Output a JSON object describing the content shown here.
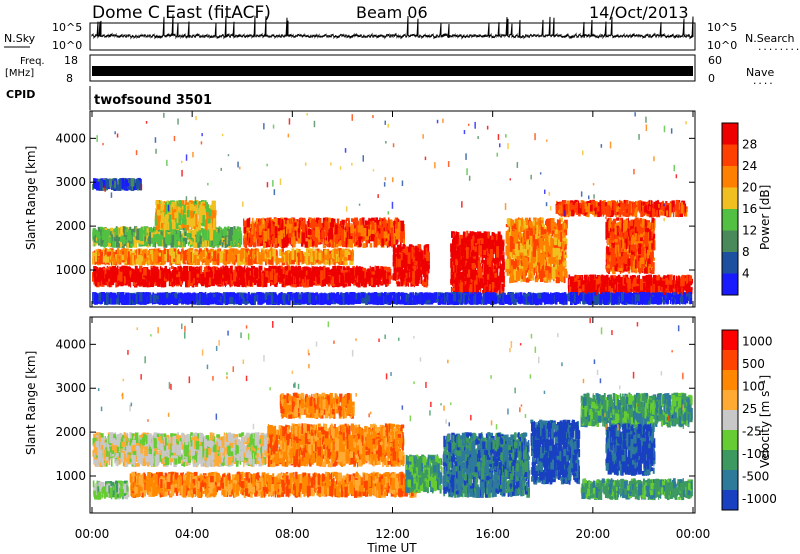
{
  "header": {
    "station": "Dome C East (fitACF)",
    "beam": "Beam 06",
    "date": "14/Oct/2013"
  },
  "strips": {
    "nsky_label": "N.Sky",
    "nsky_ticks": [
      "10^5",
      "10^0"
    ],
    "nsearch_label": "N.Search",
    "nsearch_dots": "........",
    "freq_label": "Freq.",
    "freq_unit": "[MHz]",
    "freq_ticks": [
      "18",
      "8"
    ],
    "nave_label": "Nave",
    "nave_dots": "....",
    "nave_ticks": [
      "60",
      "0"
    ],
    "cpid_label": "CPID",
    "cpid_value": "twofsound 3501"
  },
  "colors": {
    "power": [
      "#1a1aff",
      "#1e50a0",
      "#4a8a5a",
      "#52c042",
      "#f0c020",
      "#ff8000",
      "#ff4000",
      "#ee0000"
    ],
    "velocity": [
      "#ff0000",
      "#ff4400",
      "#ff8800",
      "#ffaa33",
      "#c8c8c8",
      "#66cc33",
      "#3c9a60",
      "#2e7a9a",
      "#1840c0"
    ]
  },
  "chart_data": [
    {
      "type": "heatmap",
      "panel": "power",
      "ylabel": "Slant Range [km]",
      "yticks": [
        "1000",
        "2000",
        "3000",
        "4000"
      ],
      "ylim": [
        180,
        4600
      ],
      "xlim": [
        0,
        24
      ],
      "colorbar_label": "Power [dB]",
      "colorbar_ticks": [
        "4",
        "8",
        "12",
        "16",
        "20",
        "24",
        "28"
      ],
      "colorbar_range": [
        0,
        32
      ],
      "regions": [
        {
          "x0": 0.0,
          "x1": 12.0,
          "y0": 600,
          "y1": 1100,
          "level": 7
        },
        {
          "x0": 0.0,
          "x1": 10.5,
          "y0": 1100,
          "y1": 1500,
          "level": 5
        },
        {
          "x0": 0.0,
          "x1": 6.0,
          "y0": 1500,
          "y1": 2000,
          "level": 3
        },
        {
          "x0": 6.0,
          "x1": 12.5,
          "y0": 1500,
          "y1": 2200,
          "level": 6
        },
        {
          "x0": 2.5,
          "x1": 5.0,
          "y0": 1900,
          "y1": 2600,
          "level": 4
        },
        {
          "x0": 12.0,
          "x1": 13.5,
          "y0": 600,
          "y1": 1600,
          "level": 7
        },
        {
          "x0": 14.3,
          "x1": 16.5,
          "y0": 400,
          "y1": 1900,
          "level": 7
        },
        {
          "x0": 16.5,
          "x1": 19.0,
          "y0": 700,
          "y1": 2200,
          "level": 5
        },
        {
          "x0": 19.0,
          "x1": 24.0,
          "y0": 400,
          "y1": 900,
          "level": 7
        },
        {
          "x0": 18.5,
          "x1": 23.8,
          "y0": 2200,
          "y1": 2600,
          "level": 6
        },
        {
          "x0": 20.5,
          "x1": 22.5,
          "y0": 900,
          "y1": 2200,
          "level": 6
        },
        {
          "x0": 0.0,
          "x1": 2.0,
          "y0": 2800,
          "y1": 3100,
          "level": 1
        },
        {
          "x0": 0.0,
          "x1": 24.0,
          "y0": 200,
          "y1": 500,
          "level": 0
        }
      ]
    },
    {
      "type": "heatmap",
      "panel": "velocity",
      "ylabel": "Slant Range [km]",
      "yticks": [
        "1000",
        "2000",
        "3000",
        "4000"
      ],
      "ylim": [
        180,
        4600
      ],
      "xlim": [
        0,
        24
      ],
      "xlabel": "Time UT",
      "xticks": [
        "00:00",
        "04:00",
        "08:00",
        "12:00",
        "16:00",
        "20:00",
        "00:00"
      ],
      "colorbar_label": "Velocity [m s⁻¹]",
      "colorbar_ticks": [
        "1000",
        "500",
        "100",
        "25",
        "-25",
        "-100",
        "-500",
        "-1000"
      ],
      "regions": [
        {
          "x0": 0.0,
          "x1": 1.5,
          "y0": 450,
          "y1": 900,
          "level": 5
        },
        {
          "x0": 1.5,
          "x1": 13.0,
          "y0": 500,
          "y1": 1100,
          "level": 2
        },
        {
          "x0": 0.0,
          "x1": 7.5,
          "y0": 1200,
          "y1": 2000,
          "level": 4
        },
        {
          "x0": 7.0,
          "x1": 12.5,
          "y0": 1200,
          "y1": 2200,
          "level": 2
        },
        {
          "x0": 7.5,
          "x1": 10.5,
          "y0": 2300,
          "y1": 2900,
          "level": 2
        },
        {
          "x0": 12.5,
          "x1": 14.0,
          "y0": 600,
          "y1": 1500,
          "level": 6
        },
        {
          "x0": 14.0,
          "x1": 17.5,
          "y0": 500,
          "y1": 2000,
          "level": 7
        },
        {
          "x0": 17.5,
          "x1": 19.5,
          "y0": 800,
          "y1": 2300,
          "level": 8
        },
        {
          "x0": 19.5,
          "x1": 24.0,
          "y0": 450,
          "y1": 950,
          "level": 6
        },
        {
          "x0": 19.5,
          "x1": 24.0,
          "y0": 2100,
          "y1": 2900,
          "level": 6
        },
        {
          "x0": 20.5,
          "x1": 22.5,
          "y0": 1000,
          "y1": 2200,
          "level": 8
        }
      ]
    }
  ]
}
